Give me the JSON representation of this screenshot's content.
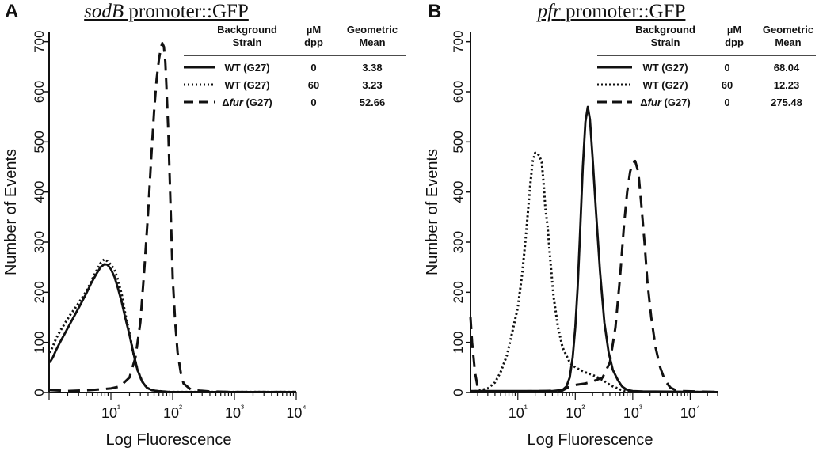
{
  "panels": [
    {
      "letter": "A",
      "title_italic": "sodB",
      "title_rest": " promoter::GFP",
      "table": {
        "headers": [
          [
            "Background",
            "Strain"
          ],
          [
            "µM",
            "dpp"
          ],
          [
            "Geometric",
            "Mean"
          ]
        ],
        "rows": [
          {
            "strain": "WT (G27)",
            "dpp": "0",
            "mean": "3.38"
          },
          {
            "strain": "WT (G27)",
            "dpp": "60",
            "mean": "3.23"
          },
          {
            "strain_prefix": "Δ",
            "strain_italic": "fur",
            "strain_suffix": " (G27)",
            "dpp": "0",
            "mean": "52.66"
          }
        ]
      }
    },
    {
      "letter": "B",
      "title_italic": "pfr",
      "title_rest": " promoter::GFP",
      "table": {
        "headers": [
          [
            "Background",
            "Strain"
          ],
          [
            "µM",
            "dpp"
          ],
          [
            "Geometric",
            "Mean"
          ]
        ],
        "rows": [
          {
            "strain": "WT (G27)",
            "dpp": "0",
            "mean": "68.04"
          },
          {
            "strain": "WT (G27)",
            "dpp": "60",
            "mean": "12.23"
          },
          {
            "strain_prefix": "Δ",
            "strain_italic": "fur",
            "strain_suffix": " (G27)",
            "dpp": "0",
            "mean": "275.48"
          }
        ]
      }
    }
  ],
  "chart_data": [
    {
      "type": "line",
      "title": "sodB promoter::GFP",
      "xlabel": "Log Fluorescence",
      "ylabel": "Number of Events",
      "x_scale": "log",
      "xlim": [
        1,
        10000
      ],
      "ylim": [
        0,
        720
      ],
      "xticks": [
        "10¹",
        "10²",
        "10³",
        "10⁴"
      ],
      "yticks": [
        "0",
        "100",
        "200",
        "300",
        "400",
        "500",
        "600",
        "700"
      ],
      "series": [
        {
          "name": "WT (G27) 0 µM dpp",
          "style": "solid",
          "x": [
            1,
            1.05,
            1.15,
            1.3,
            1.5,
            1.8,
            2.2,
            2.7,
            3.3,
            4,
            4.8,
            5.8,
            6.8,
            7.8,
            8.8,
            10,
            11.5,
            13,
            15,
            17,
            20,
            23,
            27,
            32,
            38,
            45,
            55,
            70,
            90,
            150,
            400,
            1000,
            10000
          ],
          "y": [
            60,
            62,
            70,
            85,
            100,
            118,
            138,
            158,
            178,
            198,
            218,
            236,
            250,
            256,
            255,
            246,
            230,
            208,
            180,
            150,
            115,
            80,
            45,
            22,
            10,
            5,
            3,
            2,
            1,
            1,
            1,
            1,
            1
          ]
        },
        {
          "name": "WT (G27) 60 µM dpp",
          "style": "dotted",
          "x": [
            1,
            1.05,
            1.15,
            1.3,
            1.5,
            1.8,
            2.2,
            2.7,
            3.3,
            4,
            4.8,
            5.8,
            6.8,
            7.8,
            8.8,
            10,
            11.5,
            13,
            15,
            17,
            20,
            23,
            27,
            32,
            38,
            45,
            55,
            70,
            90,
            150,
            400,
            1000,
            10000
          ],
          "y": [
            80,
            82,
            92,
            108,
            122,
            138,
            155,
            170,
            186,
            202,
            222,
            242,
            258,
            266,
            262,
            255,
            245,
            225,
            195,
            158,
            118,
            80,
            45,
            22,
            10,
            5,
            3,
            2,
            1,
            1,
            1,
            1,
            1
          ]
        },
        {
          "name": "Δfur (G27) 0 µM dpp",
          "style": "dashed",
          "x": [
            1,
            2,
            5,
            10,
            14,
            20,
            25,
            30,
            35,
            40,
            45,
            50,
            55,
            60,
            65,
            68,
            72,
            76,
            80,
            85,
            90,
            95,
            100,
            110,
            120,
            135,
            150,
            200,
            400,
            1000,
            10000
          ],
          "y": [
            5,
            3,
            5,
            8,
            12,
            30,
            70,
            140,
            250,
            360,
            470,
            560,
            625,
            665,
            690,
            697,
            690,
            660,
            600,
            520,
            420,
            320,
            230,
            140,
            80,
            40,
            18,
            5,
            2,
            1,
            1
          ]
        }
      ]
    },
    {
      "type": "line",
      "title": "pfr promoter::GFP",
      "xlabel": "Log Fluorescence",
      "ylabel": "Number of Events",
      "x_scale": "log",
      "xlim": [
        1.5,
        30000
      ],
      "ylim": [
        0,
        720
      ],
      "xticks": [
        "10¹",
        "10²",
        "10³",
        "10⁴"
      ],
      "yticks": [
        "0",
        "100",
        "200",
        "300",
        "400",
        "500",
        "600",
        "700"
      ],
      "series": [
        {
          "name": "WT (G27) 0 µM dpp",
          "style": "solid",
          "x": [
            1.5,
            40,
            60,
            70,
            80,
            90,
            100,
            110,
            120,
            135,
            150,
            165,
            180,
            200,
            230,
            270,
            320,
            380,
            450,
            550,
            650,
            800,
            1000,
            1500,
            30000
          ],
          "y": [
            3,
            3,
            5,
            12,
            30,
            70,
            130,
            210,
            310,
            450,
            540,
            570,
            545,
            470,
            360,
            240,
            140,
            80,
            45,
            25,
            12,
            5,
            3,
            2,
            1
          ]
        },
        {
          "name": "WT (G27) 60 µM dpp",
          "style": "dotted",
          "x": [
            1.5,
            2,
            3,
            4,
            5,
            6.5,
            8,
            10,
            12,
            14,
            16,
            18,
            20,
            22,
            24,
            26,
            28,
            30,
            33,
            37,
            42,
            50,
            60,
            80,
            100,
            150,
            200,
            300,
            400,
            600,
            800,
            1000,
            30000
          ],
          "y": [
            2,
            3,
            8,
            20,
            40,
            75,
            120,
            170,
            240,
            320,
            400,
            460,
            478,
            478,
            470,
            460,
            420,
            370,
            330,
            260,
            190,
            130,
            90,
            60,
            50,
            40,
            35,
            25,
            15,
            6,
            2,
            1,
            1
          ]
        },
        {
          "name": "Δfur (G27) 0 µM dpp",
          "style": "dashed",
          "x": [
            1.5,
            1.6,
            1.8,
            2,
            2.5,
            3,
            5,
            10,
            30,
            60,
            80,
            100,
            150,
            200,
            300,
            400,
            500,
            600,
            700,
            800,
            900,
            1000,
            1100,
            1250,
            1400,
            1600,
            1800,
            2100,
            2500,
            3000,
            3600,
            4500,
            6000,
            30000
          ],
          "y": [
            150,
            100,
            40,
            10,
            3,
            2,
            1,
            2,
            3,
            4,
            12,
            15,
            18,
            22,
            30,
            60,
            130,
            230,
            330,
            400,
            440,
            460,
            462,
            440,
            380,
            300,
            220,
            150,
            90,
            50,
            25,
            10,
            3,
            1
          ]
        }
      ]
    }
  ]
}
